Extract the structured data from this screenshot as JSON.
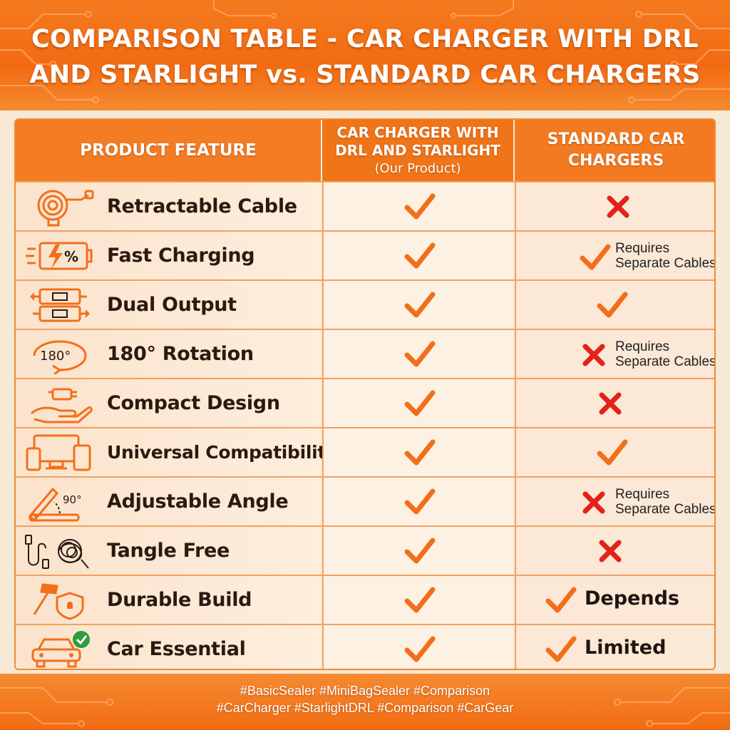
{
  "header": {
    "title_line1": "COMPARISON TABLE - CAR CHARGER WITH DRL",
    "title_line2": "AND STARLIGHT vs. STANDARD CAR CHARGERS"
  },
  "table": {
    "col1": "PRODUCT FEATURE",
    "col2_line1": "CAR CHARGER WITH",
    "col2_line2": "DRL AND STARLIGHT",
    "col2_sub": "(Our Product)",
    "col3_line1": "STANDARD CAR",
    "col3_line2": "CHARGERS",
    "rows": [
      {
        "feature": "Retractable Cable",
        "icon": "retractable-cable-icon",
        "ours": "check",
        "standard": "cross"
      },
      {
        "feature": "Fast Charging",
        "icon": "fast-charging-battery-icon",
        "ours": "check",
        "standard": "check",
        "note_line1": "Requires",
        "note_line2": "Separate Cables"
      },
      {
        "feature": "Dual Output",
        "icon": "dual-usb-output-icon",
        "ours": "check",
        "standard": "check"
      },
      {
        "feature": "180° Rotation",
        "icon": "rotation-180-icon",
        "icon_text": "180°",
        "ours": "check",
        "standard": "cross",
        "note_line1": "Requires",
        "note_line2": "Separate Cables"
      },
      {
        "feature": "Compact Design",
        "icon": "hand-holding-charger-icon",
        "ours": "check",
        "standard": "cross"
      },
      {
        "feature": "Universal Compatibility",
        "icon": "devices-icon",
        "ours": "check",
        "standard": "check"
      },
      {
        "feature": "Adjustable Angle",
        "icon": "adjustable-angle-icon",
        "icon_text": "90°",
        "ours": "check",
        "standard": "cross",
        "note_line1": "Requires",
        "note_line2": "Separate Cables"
      },
      {
        "feature": "Tangle Free",
        "icon": "tangled-cable-icon",
        "ours": "check",
        "standard": "cross"
      },
      {
        "feature": "Durable Build",
        "icon": "hammer-shield-icon",
        "ours": "check",
        "standard": "check",
        "big_note": "Depends"
      },
      {
        "feature": "Car Essential",
        "icon": "car-check-icon",
        "ours": "check",
        "standard": "check",
        "big_note": "Limited"
      }
    ]
  },
  "footer": {
    "tags_line1": "#BasicSealer #MiniBagSealer #Comparison",
    "tags_line2": "#CarCharger #StarlightDRL #Comparison #CarGear"
  },
  "colors": {
    "orange": "#f47c22",
    "check": "#f26f1a",
    "cross": "#e32219",
    "text": "#2a1a10"
  }
}
